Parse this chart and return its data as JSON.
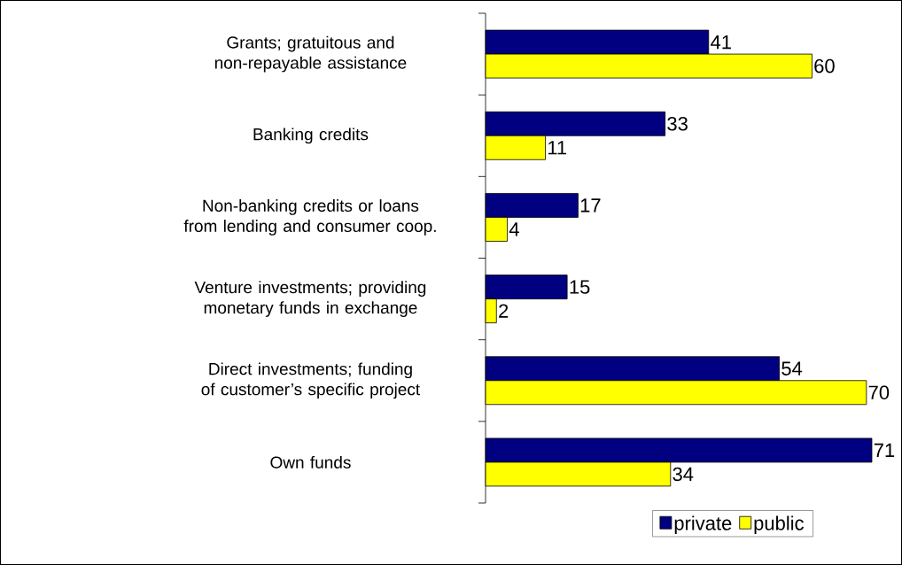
{
  "chart_data": {
    "type": "bar",
    "orientation": "horizontal",
    "categories": [
      "Grants; gratuitous and non-repayable assistance",
      "Banking credits",
      "Non-banking credits or loans from lending and consumer coop.",
      "Venture investments; providing monetary funds in exchange",
      "Direct investments; funding of customer’s specific project",
      "Own funds"
    ],
    "series": [
      {
        "name": "private",
        "color": "#000080",
        "values": [
          41,
          33,
          17,
          15,
          54,
          71
        ]
      },
      {
        "name": "public",
        "color": "#ffff00",
        "values": [
          60,
          11,
          4,
          2,
          70,
          34
        ]
      }
    ],
    "data_labels": true,
    "legend": "bottom"
  }
}
